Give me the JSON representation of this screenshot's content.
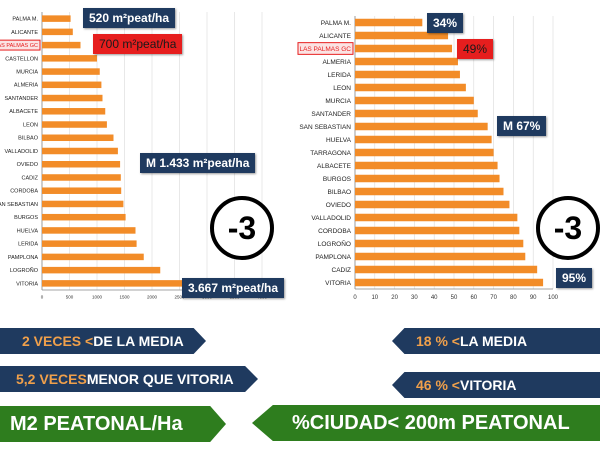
{
  "chart_data": [
    {
      "type": "bar",
      "orientation": "horizontal",
      "categories": [
        "PALMA M.",
        "ALICANTE",
        "LAS PALMAS GC",
        "CASTELLON",
        "MURCIA",
        "ALMERIA",
        "SANTANDER",
        "ALBACETE",
        "LEON",
        "BILBAO",
        "VALLADOLID",
        "OVIEDO",
        "CADIZ",
        "CORDOBA",
        "SAN SEBASTIAN",
        "BURGOS",
        "HUELVA",
        "LERIDA",
        "PAMPLONA",
        "LOGROÑO",
        "VITORIA"
      ],
      "values": [
        520,
        560,
        700,
        1000,
        1050,
        1080,
        1100,
        1150,
        1180,
        1300,
        1380,
        1420,
        1433,
        1440,
        1480,
        1520,
        1700,
        1720,
        1850,
        2150,
        3667
      ],
      "highlight": "LAS PALMAS GC",
      "xlim": [
        0,
        4000
      ],
      "xticks": [
        "0",
        "500",
        "1000",
        "1500",
        "2000",
        "2500",
        "3000",
        "3500",
        "4000"
      ],
      "callouts": [
        "520 m²peat/ha",
        "700 m²peat/ha",
        "M 1.433 m²peat/ha",
        "3.667 m²peat/ha"
      ],
      "badge": "-3"
    },
    {
      "type": "bar",
      "orientation": "horizontal",
      "categories": [
        "PALMA M.",
        "ALICANTE",
        "LAS PALMAS GC",
        "ALMERIA",
        "LERIDA",
        "LEON",
        "MURCIA",
        "SANTANDER",
        "SAN SEBASTIAN",
        "HUELVA",
        "TARRAGONA",
        "ALBACETE",
        "BURGOS",
        "BILBAO",
        "OVIEDO",
        "VALLADOLID",
        "CORDOBA",
        "LOGROÑO",
        "PAMPLONA",
        "CADIZ",
        "VITORIA"
      ],
      "values": [
        34,
        47,
        49,
        52,
        53,
        56,
        60,
        62,
        67,
        69,
        70,
        72,
        73,
        75,
        78,
        82,
        83,
        85,
        86,
        92,
        95
      ],
      "highlight": "LAS PALMAS GC",
      "xlim": [
        0,
        100
      ],
      "xticks": [
        "0",
        "10",
        "20",
        "30",
        "40",
        "50",
        "60",
        "70",
        "80",
        "90",
        "100"
      ],
      "callouts": [
        "34%",
        "49%",
        "M 67%",
        "95%"
      ],
      "badge": "-3"
    }
  ],
  "colors": {
    "bar": "#f28c28",
    "navy": "#1f3a5f",
    "green": "#2e7d1e",
    "highlight": "#e61e1e"
  },
  "banners": {
    "left1_num": "2 VECES <",
    "left1_rest": " DE LA MEDIA",
    "left2_num": "5,2 VECES",
    "left2_rest": " MENOR QUE VITORIA",
    "left3": "M2 PEATONAL/Ha",
    "right1_num": "18 % <",
    "right1_rest": " LA MEDIA",
    "right2_num": "46 % <",
    "right2_rest": "  VITORIA",
    "right3": "%CIUDAD< 200m PEATONAL"
  }
}
